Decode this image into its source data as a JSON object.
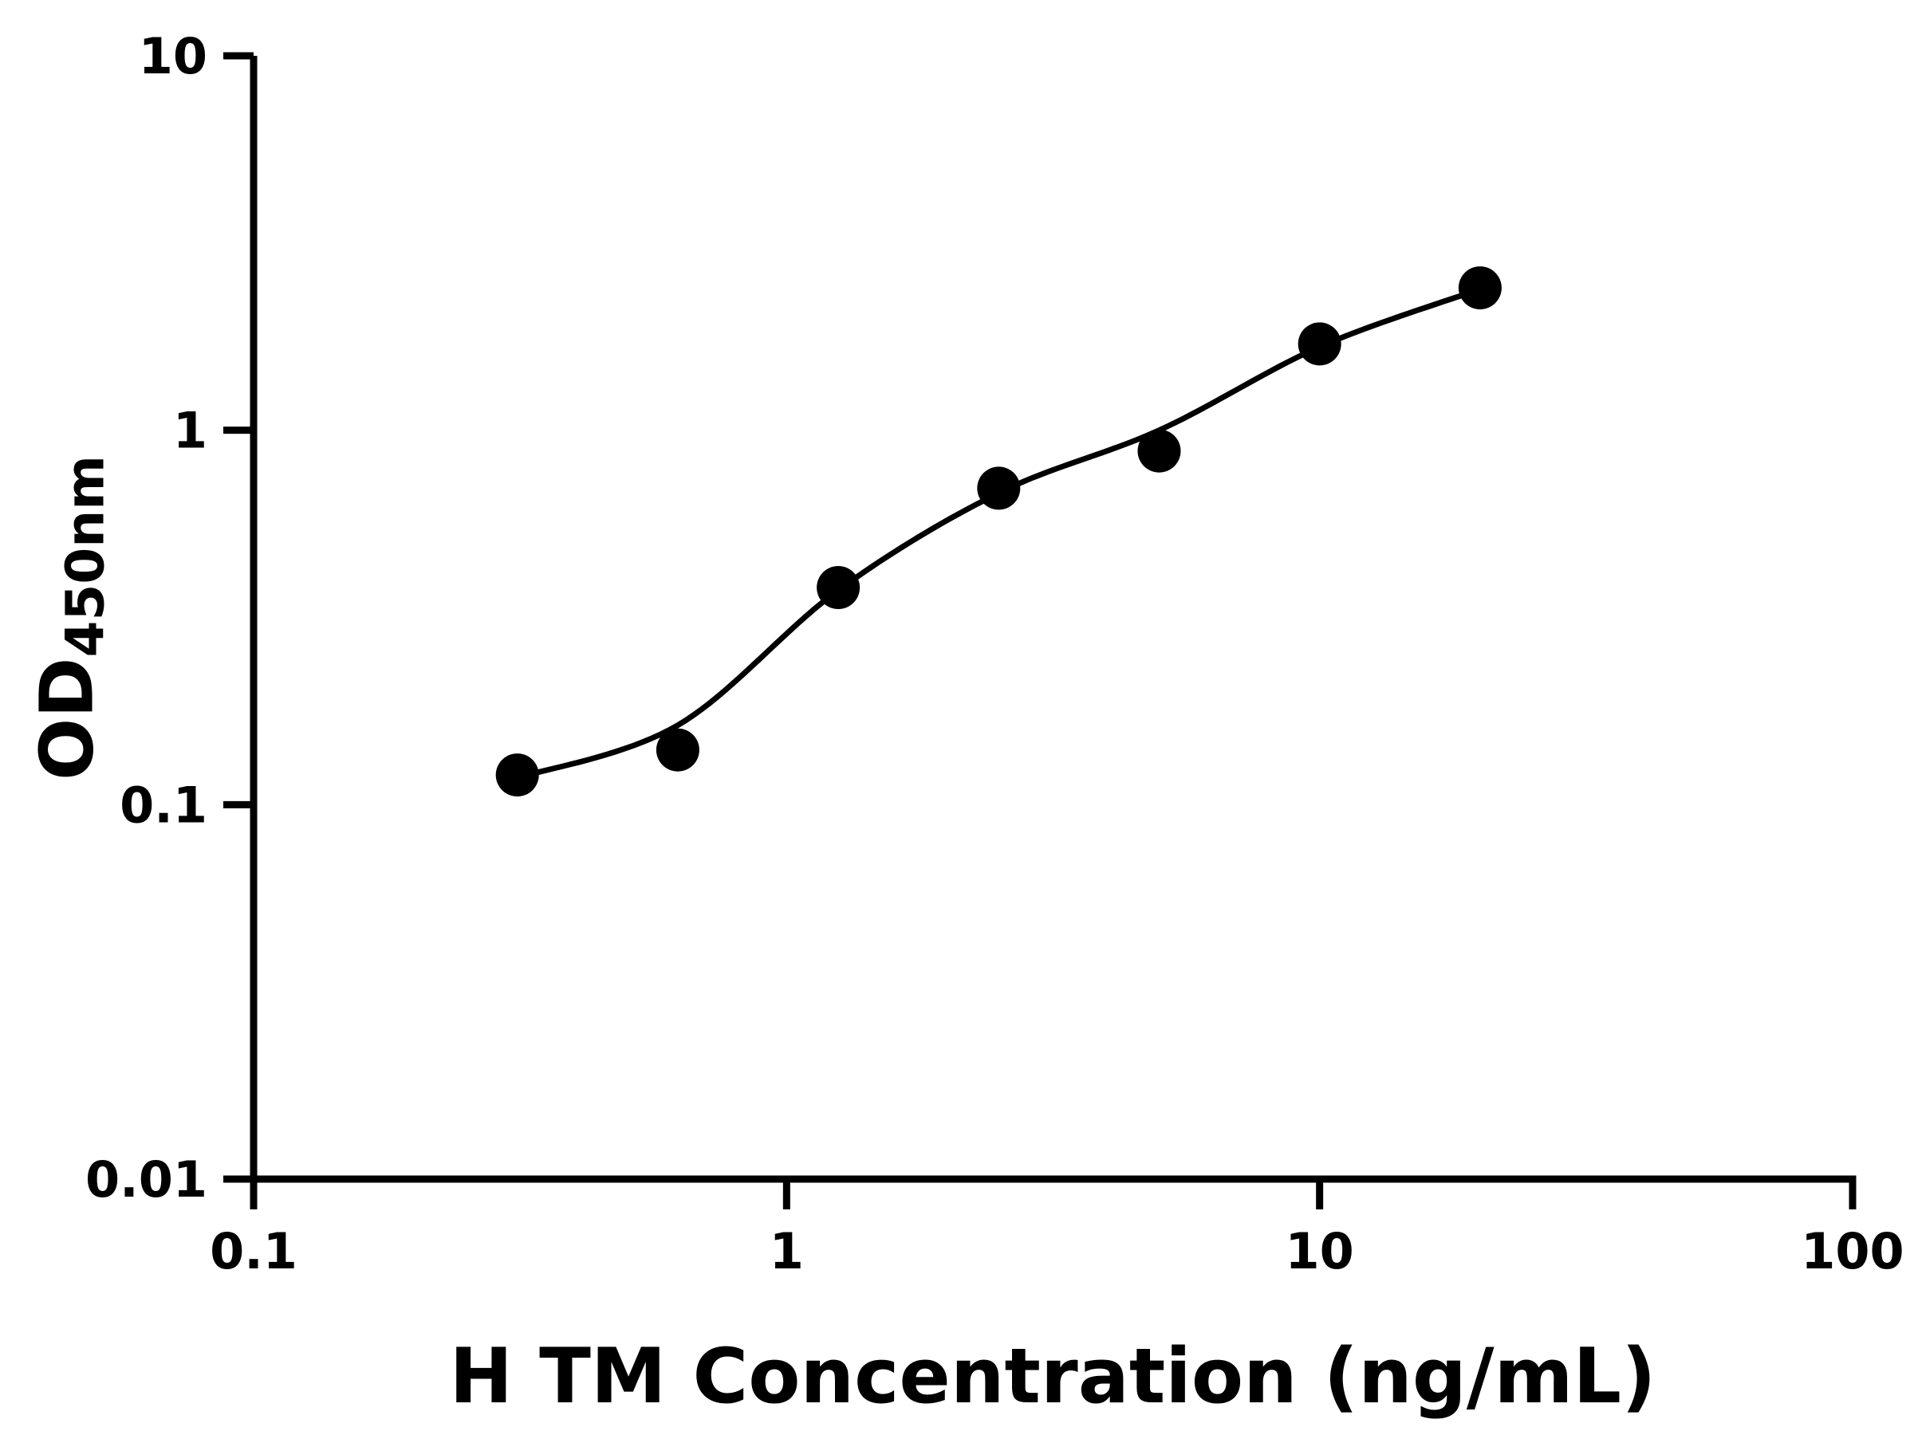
{
  "chart_data": {
    "type": "scatter",
    "title": "",
    "xlabel": "H TM Concentration (ng/mL)",
    "ylabel_main": "OD",
    "ylabel_sub": "450nm",
    "x_scale": "log",
    "y_scale": "log",
    "xlim": [
      0.1,
      100
    ],
    "ylim": [
      0.01,
      10
    ],
    "grid": false,
    "legend": null,
    "axis_color": "#000000",
    "marker_color": "#000000",
    "line_color": "#000000",
    "background": "#ffffff",
    "x_ticks": [
      {
        "value": 0.1,
        "label": "0.1"
      },
      {
        "value": 1,
        "label": "1"
      },
      {
        "value": 10,
        "label": "10"
      },
      {
        "value": 100,
        "label": "100"
      }
    ],
    "y_ticks": [
      {
        "value": 0.01,
        "label": "0.01"
      },
      {
        "value": 0.1,
        "label": "0.1"
      },
      {
        "value": 1,
        "label": "1"
      },
      {
        "value": 10,
        "label": "10"
      }
    ],
    "points": {
      "x": [
        0.3125,
        0.625,
        1.25,
        2.5,
        5,
        10,
        20
      ],
      "y": [
        0.12,
        0.14,
        0.38,
        0.7,
        0.88,
        1.7,
        2.4
      ]
    },
    "fit_curve": {
      "x": [
        0.3125,
        0.625,
        1.25,
        2.5,
        5,
        10,
        20
      ],
      "y": [
        0.118,
        0.163,
        0.374,
        0.68,
        1.0,
        1.67,
        2.38
      ]
    }
  }
}
